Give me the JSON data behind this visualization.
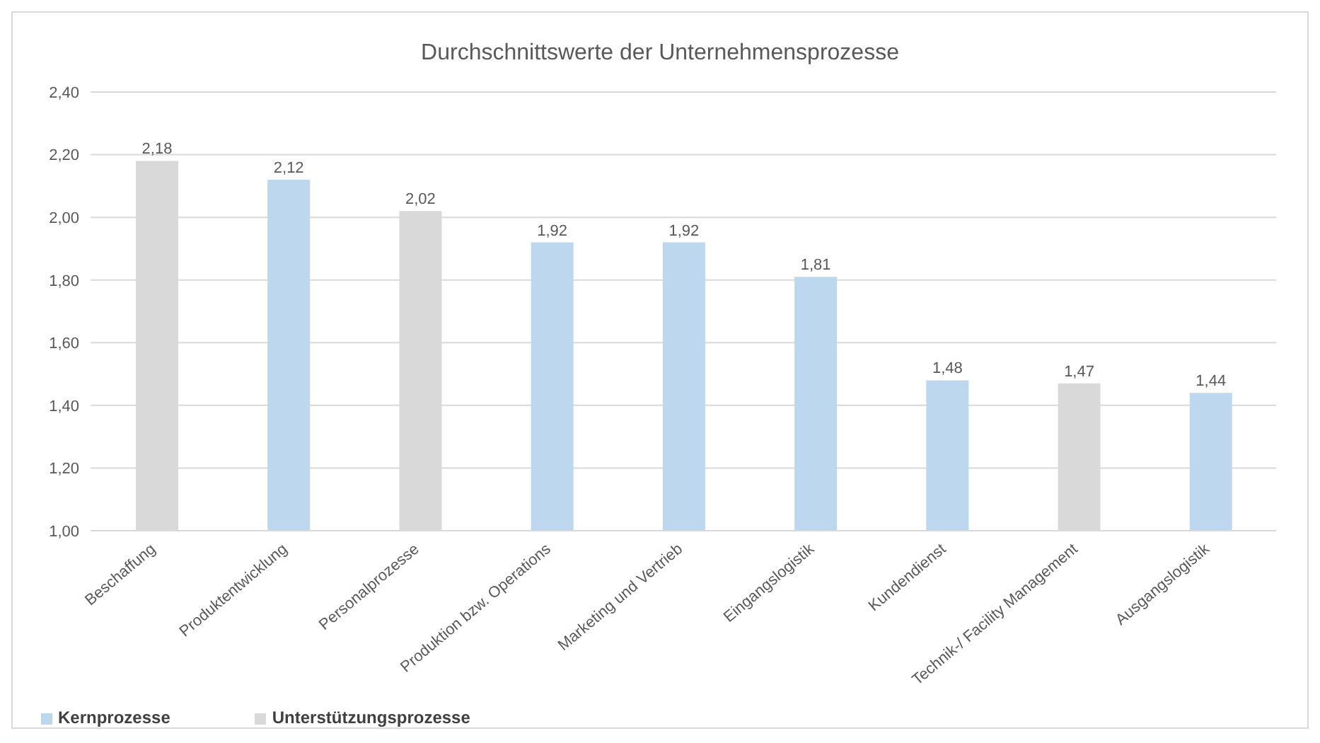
{
  "chart_data": {
    "type": "bar",
    "title": "Durchschnittswerte der Unternehmensprozesse",
    "categories": [
      "Beschaffung",
      "Produktentwicklung",
      "Personalprozesse",
      "Produktion bzw. Operations",
      "Marketing und Vertrieb",
      "Eingangslogistik",
      "Kundendienst",
      "Technik-/ Facility Management",
      "Ausgangslogistik"
    ],
    "series": [
      {
        "name": "Kernprozesse",
        "color": "#bdd7ee",
        "values": [
          null,
          2.12,
          null,
          1.92,
          1.92,
          1.81,
          1.48,
          null,
          1.44
        ],
        "value_labels": [
          null,
          "2,12",
          null,
          "1,92",
          "1,92",
          "1,81",
          "1,48",
          null,
          "1,44"
        ]
      },
      {
        "name": "Unterstützungsprozesse",
        "color": "#d9d9d9",
        "values": [
          2.18,
          null,
          2.02,
          null,
          null,
          null,
          null,
          1.47,
          null
        ],
        "value_labels": [
          "2,18",
          null,
          "2,02",
          null,
          null,
          null,
          null,
          "1,47",
          null
        ]
      }
    ],
    "stacked": true,
    "ylim": [
      1.0,
      2.4
    ],
    "yticks": [
      {
        "value": 1.0,
        "label": "1,00"
      },
      {
        "value": 1.2,
        "label": "1,20"
      },
      {
        "value": 1.4,
        "label": "1,40"
      },
      {
        "value": 1.6,
        "label": "1,60"
      },
      {
        "value": 1.8,
        "label": "1,80"
      },
      {
        "value": 2.0,
        "label": "2,00"
      },
      {
        "value": 2.2,
        "label": "2,20"
      },
      {
        "value": 2.4,
        "label": "2,40"
      }
    ],
    "grid": "y",
    "legend": "bottom left"
  }
}
